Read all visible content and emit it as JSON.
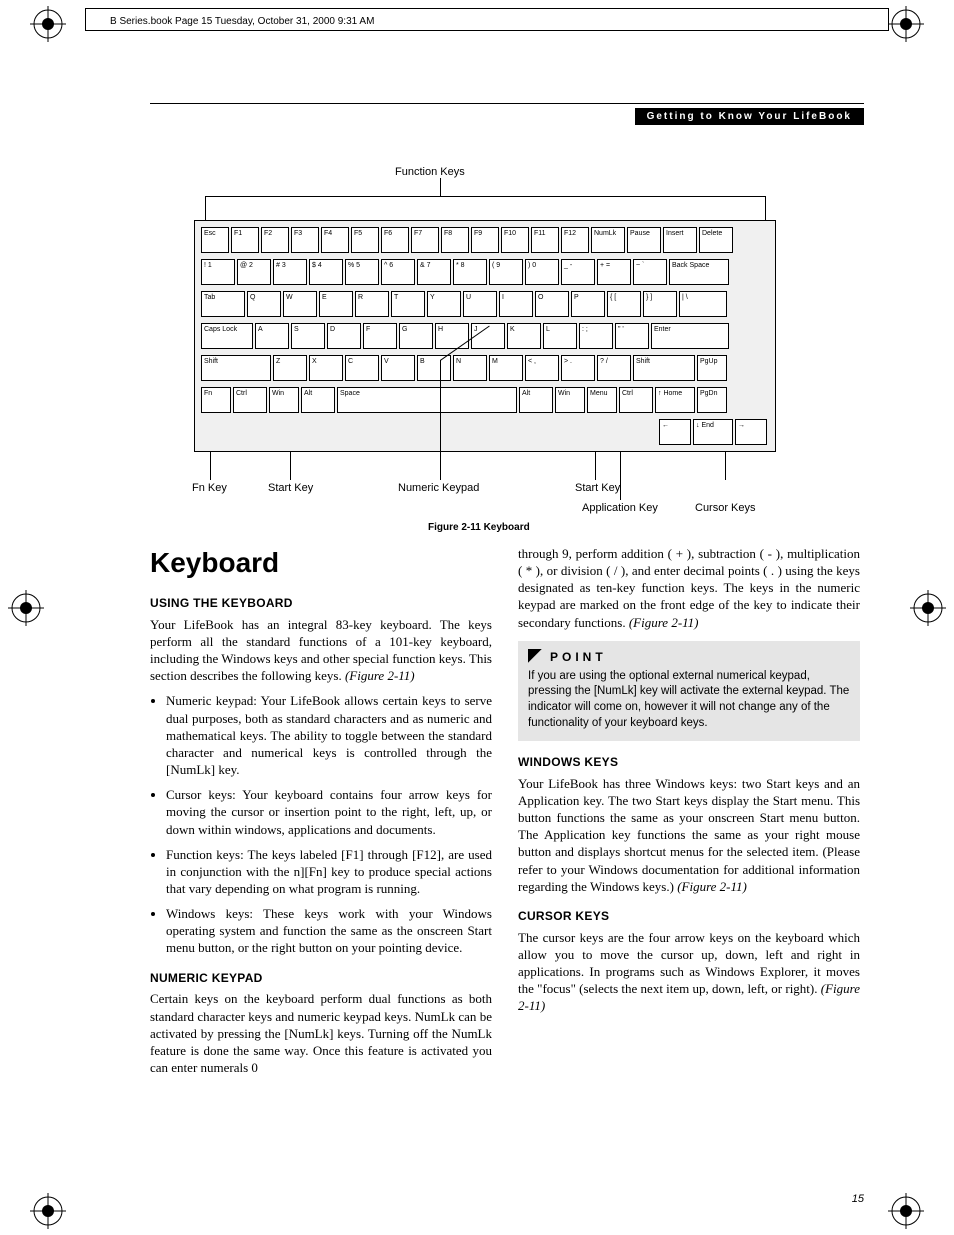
{
  "stamp": "B Series.book  Page 15  Tuesday, October 31, 2000  9:31 AM",
  "header_bar": "Getting to Know Your LifeBook",
  "figure": {
    "top_label": "Function Keys",
    "callouts": {
      "fn_key": "Fn Key",
      "start_key_l": "Start Key",
      "numeric_keypad": "Numeric Keypad",
      "start_key_r": "Start Key",
      "application_key": "Application Key",
      "cursor_keys": "Cursor Keys"
    },
    "caption": "Figure 2-11  Keyboard",
    "rows": {
      "r1": [
        "Esc",
        "F1",
        "F2",
        "F3",
        "F4",
        "F5",
        "F6",
        "F7",
        "F8",
        "F9",
        "F10",
        "F11",
        "F12",
        "NumLk",
        "Pause",
        "Insert",
        "Delete"
      ],
      "r2": [
        "! 1",
        "@ 2",
        "# 3",
        "$ 4",
        "% 5",
        "^ 6",
        "& 7",
        "* 8",
        "( 9",
        ") 0",
        "_ -",
        "+ =",
        "~ `",
        "Back Space"
      ],
      "r3": [
        "Tab",
        "Q",
        "W",
        "E",
        "R",
        "T",
        "Y",
        "U",
        "I",
        "O",
        "P",
        "{ [",
        "} ]",
        "| \\"
      ],
      "r4": [
        "Caps Lock",
        "A",
        "S",
        "D",
        "F",
        "G",
        "H",
        "J",
        "K",
        "L",
        ": ;",
        "\" '",
        "Enter"
      ],
      "r5": [
        "Shift",
        "Z",
        "X",
        "C",
        "V",
        "B",
        "N",
        "M",
        "< ,",
        "> .",
        "? /",
        "Shift",
        "PgUp"
      ],
      "r6": [
        "Fn",
        "Ctrl",
        "Win",
        "Alt",
        "Space",
        "Alt",
        "Win",
        "Menu",
        "Ctrl",
        "↑ Home",
        "PgDn"
      ],
      "r7": [
        "←",
        "↓ End",
        "→"
      ]
    }
  },
  "title": "Keyboard",
  "left": {
    "h_using": "USING THE KEYBOARD",
    "p_using": "Your LifeBook has an integral 83-key keyboard. The keys perform all the standard functions of a 101-key keyboard, including the Windows keys and other special function keys. This section describes the following keys.",
    "p_using_ref": "(Figure 2-11)",
    "bullets": [
      "Numeric keypad: Your LifeBook allows certain keys to serve dual purposes, both as standard characters and as numeric and mathematical keys. The ability to toggle between the standard character and numerical keys is controlled through the [NumLk] key.",
      "Cursor keys: Your keyboard contains four arrow keys for moving the cursor or insertion point to the right, left, up, or down within windows, applications and documents.",
      "Function keys: The keys labeled [F1] through [F12], are used in conjunction with the n][Fn] key to produce special actions that vary depending on what program is running.",
      "Windows keys: These keys work with your Windows operating system and function the same as the onscreen Start menu button, or the right button on your pointing device."
    ],
    "h_numeric": "NUMERIC KEYPAD",
    "p_numeric": "Certain keys on the keyboard perform dual functions as both standard character keys and numeric keypad keys. NumLk can be activated by pressing the [NumLk] keys. Turning off the NumLk feature is done the same way. Once this feature is activated you can enter numerals 0"
  },
  "right": {
    "p_cont": "through 9, perform addition ( + ), subtraction ( - ), multiplication ( * ), or division ( / ), and enter decimal points ( . ) using the keys designated as ten-key function keys. The keys in the numeric keypad are marked on the front edge of the key to indicate their secondary functions.",
    "p_cont_ref": "(Figure 2-11)",
    "point_label": "POINT",
    "point_text": "If you are using the optional external numerical keypad, pressing the [NumLk] key will activate the external keypad. The indicator will come on, however it will not change any of the functionality of your keyboard keys.",
    "h_windows": "WINDOWS KEYS",
    "p_windows": "Your LifeBook has three Windows keys: two Start keys and an Application key. The two Start keys display the Start menu. This button functions the same as your onscreen Start menu button. The Application key functions the same as your right mouse button and displays shortcut menus for the selected item. (Please refer to your Windows documentation for additional information regarding the Windows keys.)",
    "p_windows_ref": "(Figure 2-11)",
    "h_cursor": "CURSOR KEYS",
    "p_cursor": "The cursor keys are the four arrow keys on the keyboard which allow you to move the cursor up, down, left and right in applications. In programs such as Windows Explorer, it moves the \"focus\" (selects the next item up, down, left, or right).",
    "p_cursor_ref": "(Figure 2-11)"
  },
  "page_number": "15",
  "colors": {
    "bg": "#ffffff",
    "text": "#000000",
    "header_bg": "#000000",
    "header_fg": "#ffffff",
    "point_bg": "#e5e5e5",
    "kbd_bg": "#f0f0f0"
  }
}
